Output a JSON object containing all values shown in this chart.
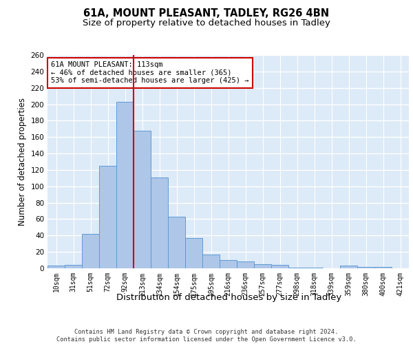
{
  "title_line1": "61A, MOUNT PLEASANT, TADLEY, RG26 4BN",
  "title_line2": "Size of property relative to detached houses in Tadley",
  "xlabel": "Distribution of detached houses by size in Tadley",
  "ylabel": "Number of detached properties",
  "categories": [
    "10sqm",
    "31sqm",
    "51sqm",
    "72sqm",
    "92sqm",
    "113sqm",
    "134sqm",
    "154sqm",
    "175sqm",
    "195sqm",
    "216sqm",
    "236sqm",
    "257sqm",
    "277sqm",
    "298sqm",
    "318sqm",
    "339sqm",
    "359sqm",
    "380sqm",
    "400sqm",
    "421sqm"
  ],
  "values": [
    3,
    4,
    42,
    125,
    203,
    168,
    111,
    63,
    37,
    17,
    10,
    8,
    5,
    4,
    1,
    1,
    0,
    3,
    2,
    2,
    0
  ],
  "bar_color": "#aec6e8",
  "bar_edge_color": "#5b9bd5",
  "red_line_index": 5,
  "annotation_text": "61A MOUNT PLEASANT: 113sqm\n← 46% of detached houses are smaller (365)\n53% of semi-detached houses are larger (425) →",
  "annotation_box_color": "#ffffff",
  "annotation_box_edge_color": "#cc0000",
  "footer_line1": "Contains HM Land Registry data © Crown copyright and database right 2024.",
  "footer_line2": "Contains public sector information licensed under the Open Government Licence v3.0.",
  "ylim": [
    0,
    260
  ],
  "yticks": [
    0,
    20,
    40,
    60,
    80,
    100,
    120,
    140,
    160,
    180,
    200,
    220,
    240,
    260
  ],
  "bg_color": "#ddeaf7",
  "grid_color": "#ffffff",
  "title_fontsize": 10.5,
  "subtitle_fontsize": 9.5,
  "tick_fontsize": 7,
  "ylabel_fontsize": 8.5,
  "xlabel_fontsize": 9.5,
  "footer_fontsize": 6.2
}
